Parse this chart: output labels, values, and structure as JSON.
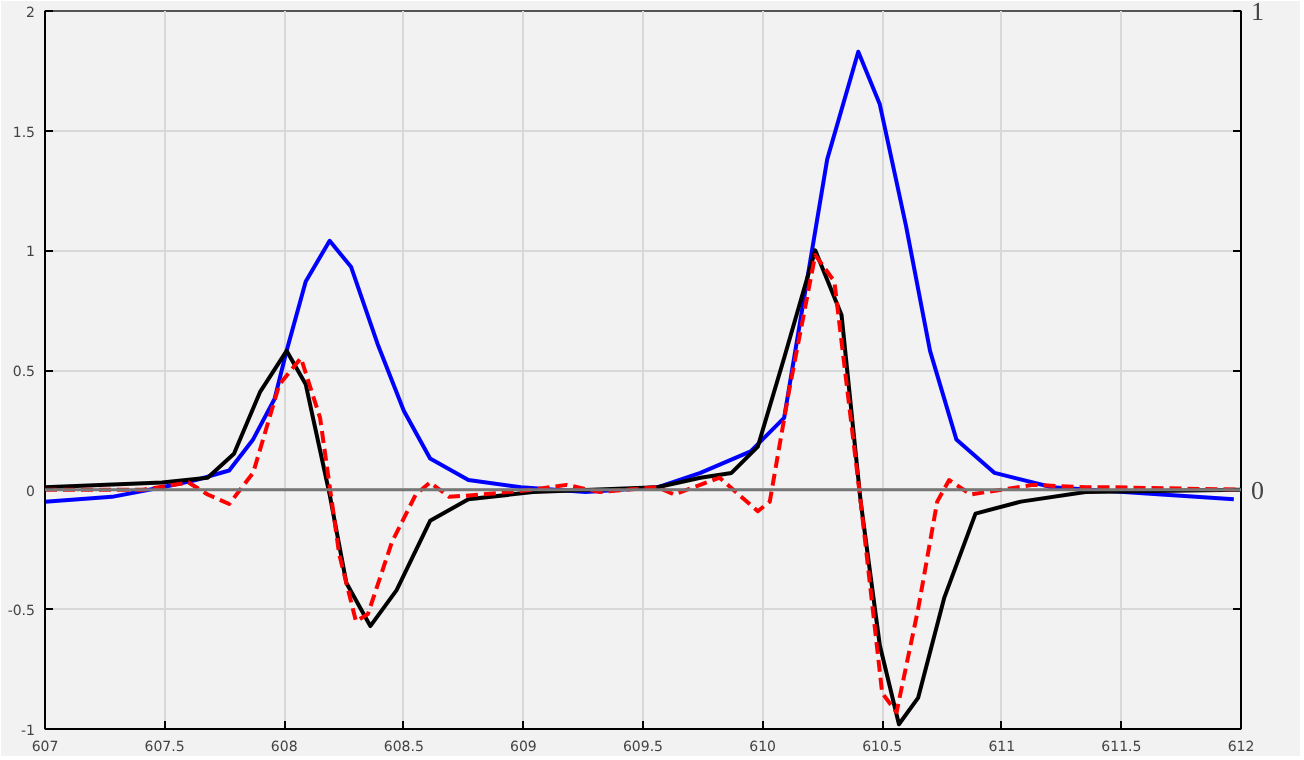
{
  "chart_data": {
    "type": "line",
    "xlim": [
      607,
      612
    ],
    "xticks": [
      607,
      607.5,
      608,
      608.5,
      609,
      609.5,
      610,
      610.5,
      611,
      611.5,
      612
    ],
    "ylim": [
      -1,
      2
    ],
    "yticks": [
      -1,
      -0.5,
      0,
      0.5,
      1,
      1.5,
      2
    ],
    "y2lim": [
      -0.5,
      1
    ],
    "y2ticks": [
      {
        "value": -0.25,
        "label": null
      },
      0,
      {
        "value": 0.25,
        "label": null
      },
      {
        "value": 0.5,
        "label": null
      },
      {
        "value": 0.75,
        "label": null
      },
      1
    ],
    "grid": true,
    "ref_lines": [
      {
        "axis": "y",
        "value": 0,
        "color": "#777777"
      }
    ],
    "series": [
      {
        "color": "#0000ff",
        "line_style": "solid",
        "x": [
          607,
          607.28,
          607.49,
          607.63,
          607.77,
          607.87,
          607.96,
          608.01,
          608.09,
          608.19,
          608.28,
          608.39,
          608.5,
          608.61,
          608.77,
          608.99,
          609.26,
          609.56,
          609.74,
          609.95,
          610.09,
          610.19,
          610.27,
          610.4,
          610.49,
          610.6,
          610.7,
          610.81,
          610.97,
          611.21,
          611.51,
          611.97
        ],
        "values": [
          -0.05,
          -0.03,
          0.01,
          0.04,
          0.08,
          0.21,
          0.38,
          0.58,
          0.87,
          1.04,
          0.93,
          0.61,
          0.33,
          0.13,
          0.04,
          0.01,
          -0.01,
          0.01,
          0.07,
          0.16,
          0.3,
          0.9,
          1.38,
          1.83,
          1.61,
          1.1,
          0.58,
          0.21,
          0.07,
          0.01,
          -0.01,
          -0.04
        ]
      },
      {
        "color": "#000000",
        "line_style": "solid",
        "x": [
          607,
          607.49,
          607.68,
          607.79,
          607.9,
          608.01,
          608.09,
          608.19,
          608.26,
          608.36,
          608.47,
          608.61,
          608.77,
          609.04,
          609.56,
          609.74,
          609.87,
          609.98,
          610.09,
          610.22,
          610.33,
          610.41,
          610.49,
          610.57,
          610.65,
          610.76,
          610.89,
          611.08,
          611.35,
          612
        ],
        "values": [
          0.01,
          0.03,
          0.05,
          0.15,
          0.41,
          0.58,
          0.44,
          -0.02,
          -0.39,
          -0.57,
          -0.42,
          -0.13,
          -0.04,
          -0.01,
          0.01,
          0.05,
          0.07,
          0.18,
          0.55,
          1.0,
          0.73,
          -0.05,
          -0.65,
          -0.98,
          -0.87,
          -0.45,
          -0.1,
          -0.05,
          -0.01,
          0
        ]
      },
      {
        "color": "#ff0000",
        "line_style": "dashed",
        "x": [
          607,
          607.41,
          607.6,
          607.68,
          607.77,
          607.87,
          607.98,
          608.07,
          608.15,
          608.23,
          608.3,
          608.35,
          608.45,
          608.55,
          608.61,
          608.69,
          608.83,
          609.04,
          609.18,
          609.32,
          609.56,
          609.63,
          609.82,
          609.98,
          610.03,
          610.11,
          610.22,
          610.3,
          610.41,
          610.5,
          610.56,
          610.65,
          610.73,
          610.78,
          610.87,
          611.0,
          611.13,
          611.35,
          611.46,
          612
        ],
        "values": [
          0,
          0,
          0.03,
          -0.02,
          -0.06,
          0.07,
          0.44,
          0.55,
          0.3,
          -0.27,
          -0.55,
          -0.52,
          -0.22,
          -0.02,
          0.03,
          -0.03,
          -0.02,
          0,
          0.02,
          -0.01,
          0.01,
          -0.02,
          0.05,
          -0.09,
          -0.05,
          0.41,
          0.98,
          0.87,
          -0.05,
          -0.85,
          -0.93,
          -0.5,
          -0.05,
          0.04,
          -0.02,
          0,
          0.02,
          0.01,
          0.01,
          0
        ]
      }
    ]
  }
}
